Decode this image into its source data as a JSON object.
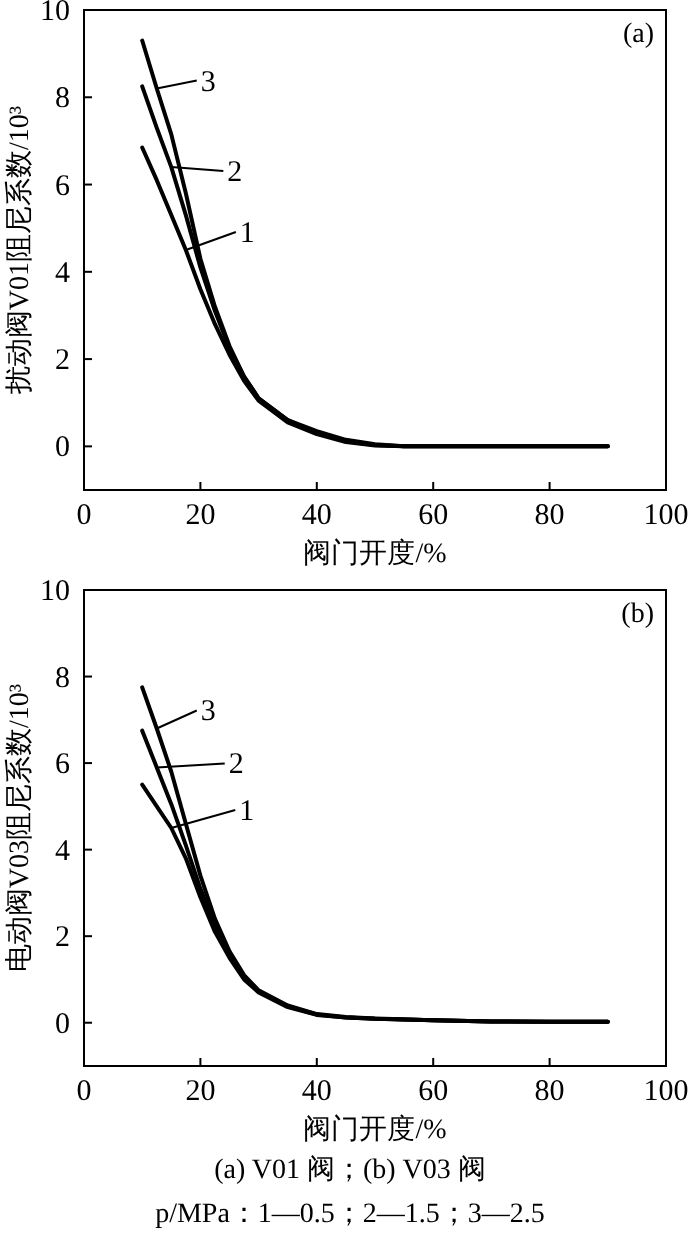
{
  "chart_data": [
    {
      "type": "line",
      "title": "(a)",
      "xlabel": "阀门开度/%",
      "ylabel": "扰动阀V01阻尼系数/10³",
      "xlim": [
        0,
        100
      ],
      "ylim": [
        -1,
        10
      ],
      "xticks": [
        0,
        20,
        40,
        60,
        80,
        100
      ],
      "yticks": [
        0,
        2,
        4,
        6,
        8,
        10
      ],
      "grid": false,
      "legend": "top left",
      "marker": "none",
      "line_style": "solid",
      "x": [
        10,
        12.5,
        15,
        17.5,
        20,
        22.5,
        25,
        27.5,
        30,
        35,
        40,
        45,
        50,
        55,
        60,
        70,
        80,
        90
      ],
      "series": [
        {
          "name": "1",
          "color": "#000000",
          "values": [
            6.85,
            6.1,
            5.3,
            4.5,
            3.6,
            2.8,
            2.1,
            1.5,
            1.05,
            0.55,
            0.28,
            0.1,
            0.02,
            0,
            0,
            0,
            0,
            0
          ]
        },
        {
          "name": "2",
          "color": "#000000",
          "values": [
            8.25,
            7.3,
            6.4,
            5.3,
            4.1,
            3.1,
            2.25,
            1.6,
            1.1,
            0.6,
            0.3,
            0.12,
            0.03,
            0,
            0,
            0,
            0,
            0
          ]
        },
        {
          "name": "3",
          "color": "#000000",
          "values": [
            9.3,
            8.2,
            7.15,
            5.8,
            4.3,
            3.2,
            2.3,
            1.6,
            1.1,
            0.6,
            0.35,
            0.15,
            0.05,
            0,
            0,
            0,
            0,
            0
          ]
        }
      ]
    },
    {
      "type": "line",
      "title": "(b)",
      "xlabel": "阀门开度/%",
      "ylabel": "电动阀V03阻尼系数/10³",
      "xlim": [
        0,
        100
      ],
      "ylim": [
        -1,
        10
      ],
      "xticks": [
        0,
        20,
        40,
        60,
        80,
        100
      ],
      "yticks": [
        0,
        2,
        4,
        6,
        8,
        10
      ],
      "grid": false,
      "legend": "top left",
      "marker": "none",
      "line_style": "solid",
      "x": [
        10,
        12.5,
        15,
        17.5,
        20,
        22.5,
        25,
        27.5,
        30,
        35,
        40,
        45,
        50,
        60,
        70,
        80,
        90
      ],
      "series": [
        {
          "name": "1",
          "color": "#000000",
          "values": [
            5.5,
            5.0,
            4.5,
            3.8,
            2.9,
            2.1,
            1.5,
            1.0,
            0.7,
            0.36,
            0.18,
            0.12,
            0.09,
            0.06,
            0.03,
            0.02,
            0.02
          ]
        },
        {
          "name": "2",
          "color": "#000000",
          "values": [
            6.75,
            5.9,
            5.05,
            4.1,
            3.1,
            2.25,
            1.55,
            1.05,
            0.72,
            0.38,
            0.19,
            0.12,
            0.09,
            0.06,
            0.03,
            0.02,
            0.02
          ]
        },
        {
          "name": "3",
          "color": "#000000",
          "values": [
            7.75,
            6.8,
            5.8,
            4.6,
            3.4,
            2.4,
            1.65,
            1.1,
            0.75,
            0.4,
            0.2,
            0.13,
            0.1,
            0.06,
            0.03,
            0.02,
            0.02
          ]
        }
      ],
      "annotations": [
        "(a) V01 阀；(b) V03 阀",
        "p/MPa：1—0.5；2—1.5；3—2.5"
      ]
    }
  ]
}
